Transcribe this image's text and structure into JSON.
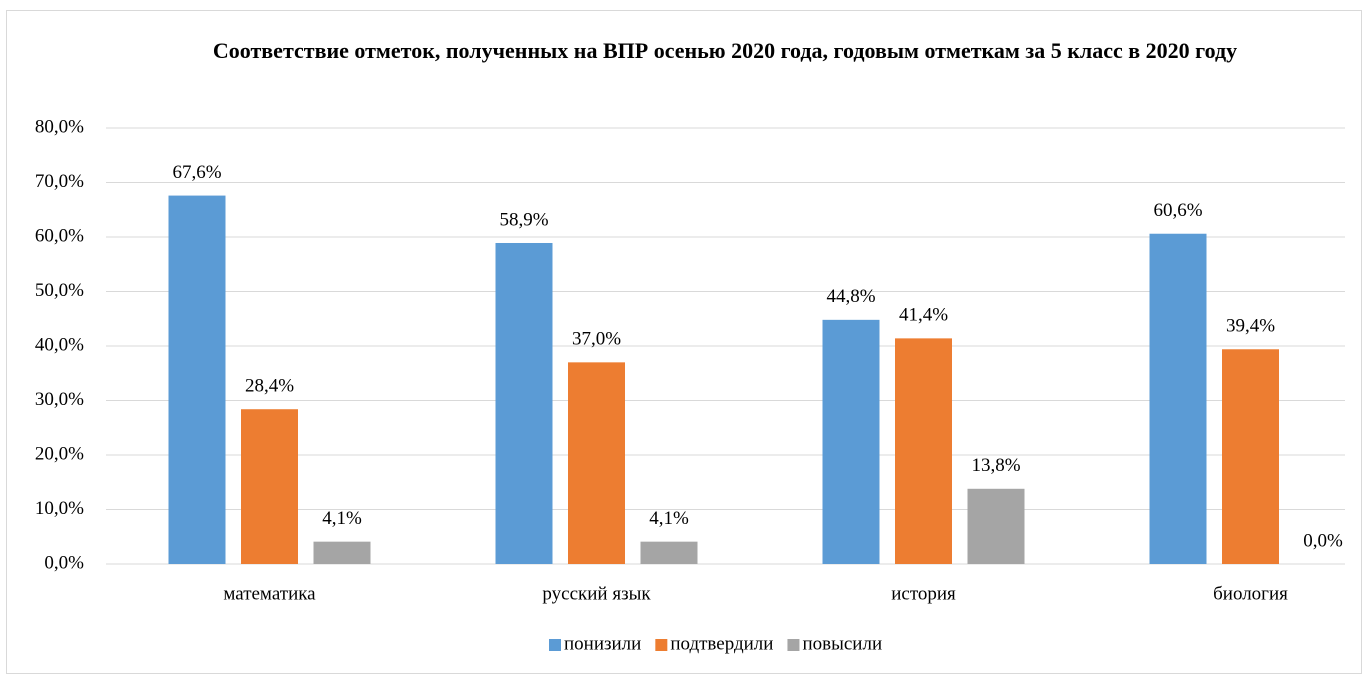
{
  "chart_data": {
    "type": "bar",
    "title": "Соответствие отметок, полученных на ВПР осенью 2020 года, годовым отметкам за 5 класс в 2020 году",
    "categories": [
      "математика",
      "русский язык",
      "история",
      "биология"
    ],
    "series": [
      {
        "name": "понизили",
        "color": "#5b9bd5",
        "values": [
          67.6,
          58.9,
          44.8,
          60.6
        ],
        "value_labels": [
          "67,6%",
          "58,9%",
          "44,8%",
          "60,6%"
        ]
      },
      {
        "name": "подтвердили",
        "color": "#ed7d31",
        "values": [
          28.4,
          37.0,
          41.4,
          39.4
        ],
        "value_labels": [
          "28,4%",
          "37,0%",
          "41,4%",
          "39,4%"
        ]
      },
      {
        "name": "повысили",
        "color": "#a5a5a5",
        "values": [
          4.1,
          4.1,
          13.8,
          0.0
        ],
        "value_labels": [
          "4,1%",
          "4,1%",
          "13,8%",
          "0,0%"
        ]
      }
    ],
    "ylim": [
      0,
      80
    ],
    "yticks": [
      {
        "value": 0,
        "label": "0,0%"
      },
      {
        "value": 10,
        "label": "10,0%"
      },
      {
        "value": 20,
        "label": "20,0%"
      },
      {
        "value": 30,
        "label": "30,0%"
      },
      {
        "value": 40,
        "label": "40,0%"
      },
      {
        "value": 50,
        "label": "50,0%"
      },
      {
        "value": 60,
        "label": "60,0%"
      },
      {
        "value": 70,
        "label": "70,0%"
      },
      {
        "value": 80,
        "label": "80,0%"
      }
    ],
    "grid": true,
    "legend": "bottom"
  }
}
